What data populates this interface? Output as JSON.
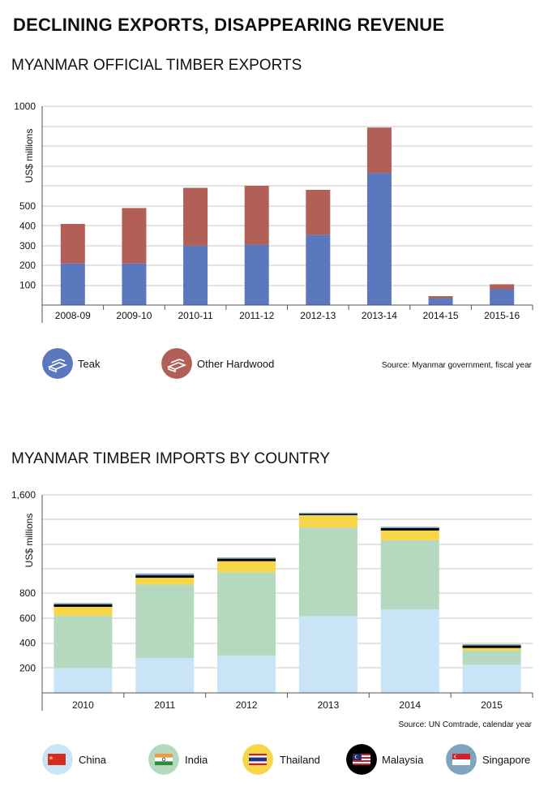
{
  "page": {
    "title": "DECLINING EXPORTS, DISAPPEARING REVENUE"
  },
  "colors": {
    "teak": "#5b77bd",
    "other_hardwood": "#b25f58",
    "china": "#c8e4f6",
    "india": "#b5d9be",
    "thailand": "#f7d64a",
    "malaysia": "#000000",
    "singapore": "#7fa4bd",
    "grid": "#c8c8c8"
  },
  "chart_data": [
    {
      "type": "bar",
      "stacked": true,
      "title": "MYANMAR OFFICIAL TIMBER EXPORTS",
      "ylabel": "US$ millions",
      "xlabel": "",
      "categories": [
        "2008-09",
        "2009-10",
        "2010-11",
        "2011-12",
        "2012-13",
        "2013-14",
        "2014-15",
        "2015-16"
      ],
      "series": [
        {
          "name": "Teak",
          "values": [
            210,
            210,
            300,
            305,
            355,
            665,
            35,
            80
          ]
        },
        {
          "name": "Other Hardwood",
          "values": [
            200,
            280,
            290,
            295,
            225,
            230,
            10,
            25
          ]
        }
      ],
      "ylim": [
        0,
        1000
      ],
      "ytick_labels": [
        "100",
        "200",
        "300",
        "400",
        "500",
        "1000"
      ],
      "ytick_values": [
        100,
        200,
        300,
        400,
        500,
        1000
      ],
      "grid": true,
      "legend_position": "bottom-left",
      "source": "Source: Myanmar government, fiscal year"
    },
    {
      "type": "bar",
      "stacked": true,
      "title": "MYANMAR TIMBER IMPORTS BY COUNTRY",
      "ylabel": "US$ millions",
      "xlabel": "",
      "categories": [
        "2010",
        "2011",
        "2012",
        "2013",
        "2014",
        "2015"
      ],
      "series": [
        {
          "name": "China",
          "values": [
            200,
            280,
            300,
            615,
            670,
            225
          ]
        },
        {
          "name": "India",
          "values": [
            420,
            590,
            670,
            720,
            560,
            115
          ]
        },
        {
          "name": "Thailand",
          "values": [
            70,
            55,
            90,
            100,
            80,
            20
          ]
        },
        {
          "name": "Malaysia",
          "values": [
            20,
            20,
            20,
            10,
            20,
            20
          ]
        },
        {
          "name": "Singapore",
          "values": [
            10,
            15,
            10,
            10,
            10,
            10
          ]
        }
      ],
      "ylim": [
        0,
        1600
      ],
      "ytick_labels": [
        "200",
        "400",
        "600",
        "800",
        "1,600"
      ],
      "ytick_values": [
        200,
        400,
        600,
        800,
        1600
      ],
      "grid": true,
      "legend_position": "bottom",
      "source": "Source: UN Comtrade, calendar year"
    }
  ]
}
